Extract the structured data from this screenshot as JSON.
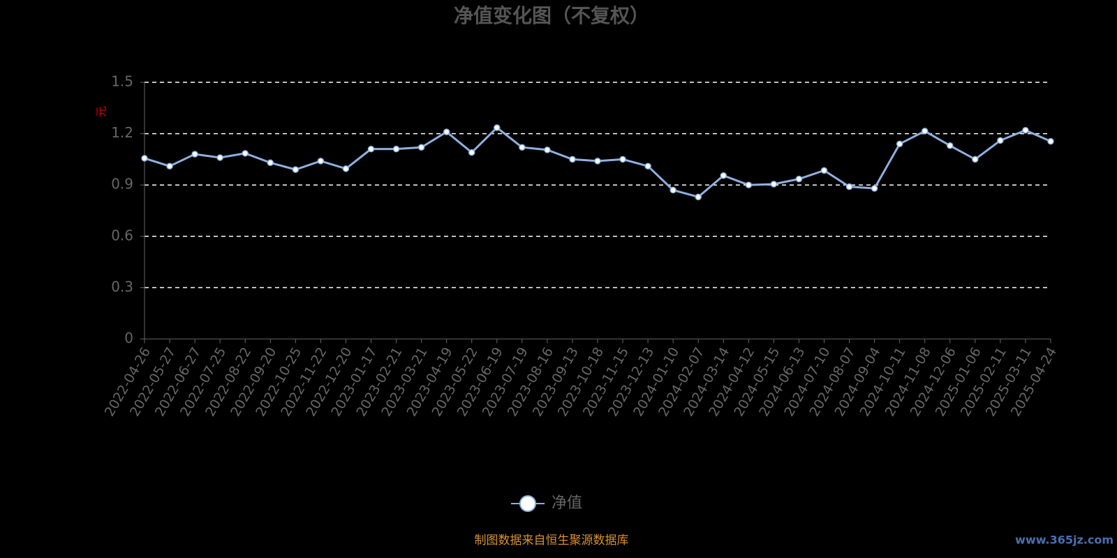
{
  "chart_data": {
    "type": "line",
    "title": "净值变化图（不复权）",
    "y_label": "元",
    "categories": [
      "2022-04-26",
      "2022-05-27",
      "2022-06-27",
      "2022-07-25",
      "2022-08-22",
      "2022-09-20",
      "2022-10-25",
      "2022-11-22",
      "2022-12-20",
      "2023-01-17",
      "2023-02-21",
      "2023-03-21",
      "2023-04-19",
      "2023-05-22",
      "2023-06-19",
      "2023-07-19",
      "2023-08-16",
      "2023-09-13",
      "2023-10-18",
      "2023-11-15",
      "2023-12-13",
      "2024-01-10",
      "2024-02-07",
      "2024-03-14",
      "2024-04-12",
      "2024-05-15",
      "2024-06-13",
      "2024-07-10",
      "2024-08-07",
      "2024-09-04",
      "2024-10-11",
      "2024-11-08",
      "2024-12-06",
      "2025-01-06",
      "2025-02-11",
      "2025-03-11",
      "2025-04-24"
    ],
    "series": [
      {
        "name": "净值",
        "color": "#8eb0df",
        "values": [
          1.056,
          1.01,
          1.08,
          1.06,
          1.085,
          1.03,
          0.99,
          1.04,
          0.995,
          1.11,
          1.11,
          1.12,
          1.21,
          1.09,
          1.235,
          1.12,
          1.105,
          1.05,
          1.04,
          1.05,
          1.01,
          0.87,
          0.83,
          0.955,
          0.9,
          0.905,
          0.935,
          0.985,
          0.89,
          0.88,
          1.14,
          1.215,
          1.13,
          1.05,
          1.16,
          1.22,
          1.155
        ]
      }
    ],
    "ylim": [
      0,
      1.5
    ],
    "yticks": [
      0,
      0.3,
      0.6,
      0.9,
      1.2,
      1.5
    ],
    "grid": true,
    "source": "制图数据来自恒生聚源数据库",
    "watermark": "www.365jz.com"
  }
}
